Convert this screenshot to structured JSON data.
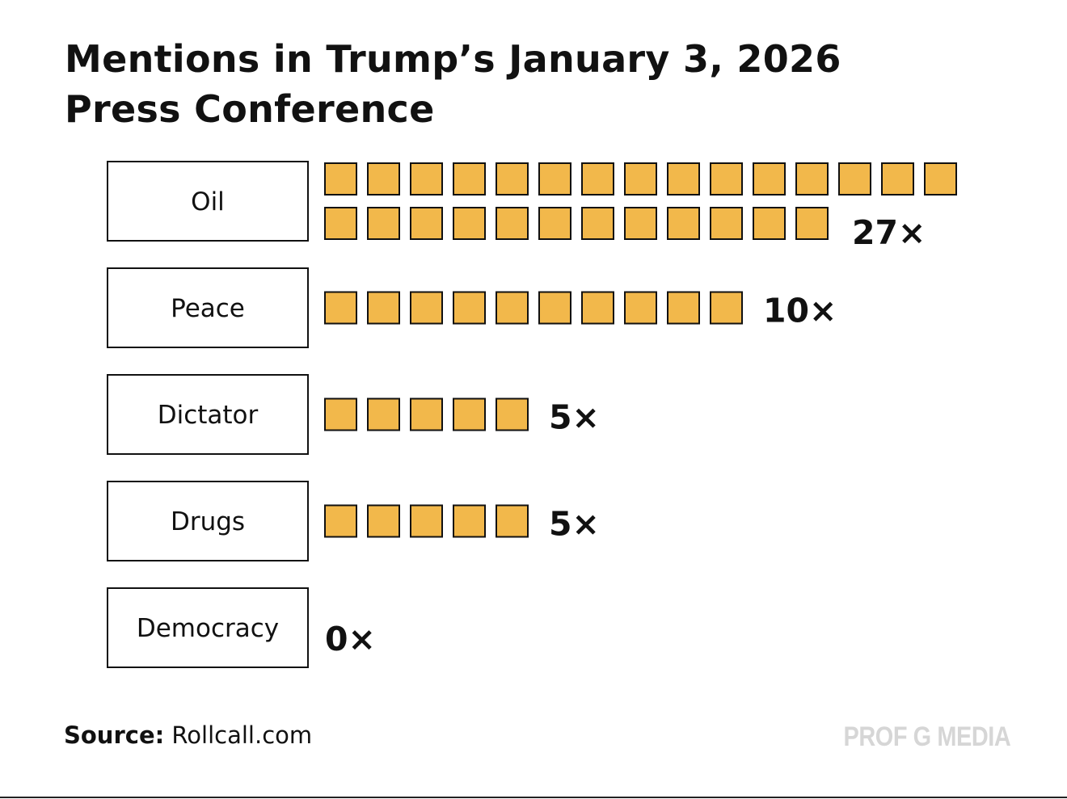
{
  "colors": {
    "square_fill": "#f2b84b",
    "square_stroke": "#111111",
    "box_stroke": "#111111",
    "watermark": "#d6d6d6"
  },
  "chart_data": {
    "type": "pictogram-bar",
    "title_lines": [
      "Mentions in Trump’s January 3, 2026",
      "Press Conference"
    ],
    "categories": [
      "Oil",
      "Peace",
      "Dictator",
      "Drugs",
      "Democracy"
    ],
    "values": [
      27,
      10,
      5,
      5,
      0
    ],
    "value_labels": [
      "27×",
      "10×",
      "5×",
      "5×",
      "0×"
    ],
    "unit": "mentions",
    "max_per_row": 15
  },
  "footer": {
    "source_label": "Source:",
    "source_value": " Rollcall.com",
    "brand": "PROF G MEDIA"
  }
}
